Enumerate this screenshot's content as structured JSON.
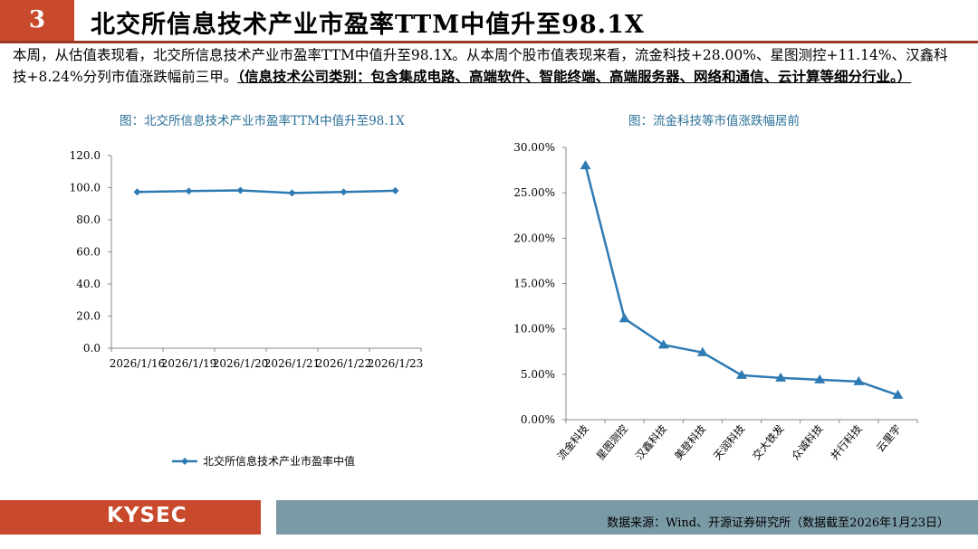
{
  "header": {
    "page_number": "3",
    "title": "北交所信息技术产业市盈率TTM中值升至98.1X"
  },
  "intro": {
    "text": "本周，从估值表现看，北交所信息技术产业市盈率TTM中值升至98.1X。从本周个股市值表现来看，流金科技+28.00%、星图测控+11.14%、汉鑫科技+8.24%分列市值涨跌幅前三甲。",
    "emphasis": "（信息技术公司类别：包含集成电路、高端软件、智能终端、高端服务器、网络和通信、云计算等细分行业。）"
  },
  "left_chart": {
    "caption": "图：北交所信息技术产业市盈率TTM中值升至98.1X"
  },
  "right_chart": {
    "caption": "图：流金科技等市值涨跌幅居前"
  },
  "footer": {
    "logo": "KYSEC",
    "source": "数据来源：Wind、开源证券研究所（数据截至2026年1月23日）"
  },
  "colors": {
    "accent": "#c8492c",
    "series": "#2e7ab3",
    "footer_bar": "#7a9aa6"
  },
  "chart_data": [
    {
      "type": "line",
      "categories": [
        "2026/1/16",
        "2026/1/19",
        "2026/1/20",
        "2026/1/21",
        "2026/1/22",
        "2026/1/23"
      ],
      "series": [
        {
          "name": "北交所信息技术产业市盈率中值",
          "values": [
            97.3,
            97.9,
            98.3,
            96.7,
            97.3,
            98.1
          ]
        }
      ],
      "yticks": [
        "0.0",
        "20.0",
        "40.0",
        "60.0",
        "80.0",
        "100.0",
        "120.0"
      ],
      "ylim": [
        0,
        120
      ],
      "legend": "bottom",
      "grid": false
    },
    {
      "type": "line",
      "categories": [
        "流金科技",
        "星图测控",
        "汉鑫科技",
        "美登科技",
        "天润科技",
        "交大铁发",
        "众诚科技",
        "并行科技",
        "云里宇"
      ],
      "series": [
        {
          "values": [
            28.0,
            11.14,
            8.24,
            7.4,
            4.9,
            4.6,
            4.4,
            4.2,
            2.7
          ]
        }
      ],
      "yticks": [
        "0.00%",
        "5.00%",
        "10.00%",
        "15.00%",
        "20.00%",
        "25.00%",
        "30.00%"
      ],
      "ylim": [
        0,
        30
      ],
      "grid": false
    }
  ]
}
